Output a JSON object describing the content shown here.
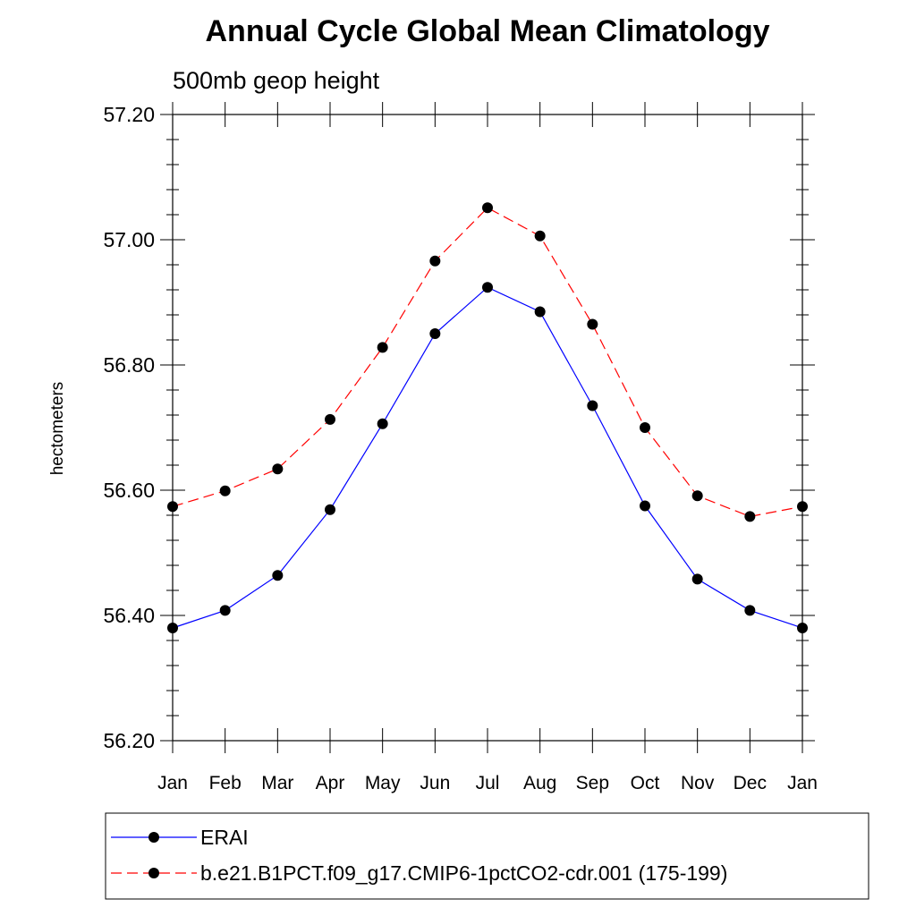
{
  "chart_data": {
    "type": "line",
    "title": "Annual Cycle Global Mean Climatology",
    "subtitle": "500mb geop height",
    "xlabel": "",
    "ylabel": "hectometers",
    "categories": [
      "Jan",
      "Feb",
      "Mar",
      "Apr",
      "May",
      "Jun",
      "Jul",
      "Aug",
      "Sep",
      "Oct",
      "Nov",
      "Dec",
      "Jan"
    ],
    "ylim": [
      56.2,
      57.2
    ],
    "yticks": [
      "56.20",
      "56.40",
      "56.60",
      "56.80",
      "57.00",
      "57.20"
    ],
    "grid": false,
    "legend_position": "bottom",
    "series": [
      {
        "name": "ERAI",
        "color": "#0000ff",
        "dash": "solid",
        "values": [
          56.38,
          56.408,
          56.464,
          56.569,
          56.706,
          56.85,
          56.924,
          56.885,
          56.735,
          56.575,
          56.458,
          56.408,
          56.38
        ]
      },
      {
        "name": "b.e21.B1PCT.f09_g17.CMIP6-1pctCO2-cdr.001 (175-199)",
        "color": "#ff0000",
        "dash": "dashed",
        "values": [
          56.574,
          56.599,
          56.634,
          56.713,
          56.828,
          56.966,
          57.051,
          57.006,
          56.865,
          56.7,
          56.591,
          56.558,
          56.574
        ]
      }
    ]
  }
}
